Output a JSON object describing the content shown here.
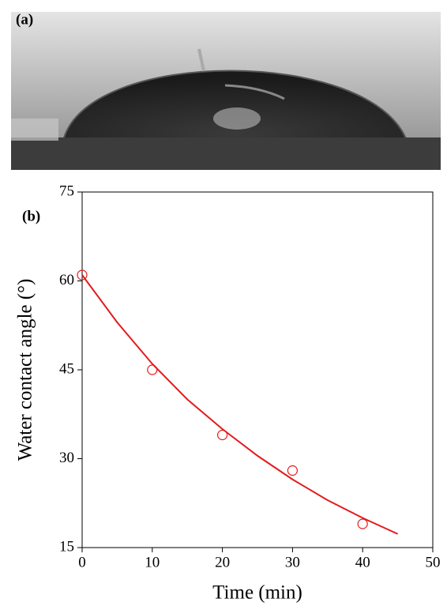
{
  "image_label": "(a)",
  "chart_data": {
    "type": "scatter",
    "panel_label": "(b)",
    "x_label": "Time (min)",
    "y_label": "Water contact angle (°)",
    "xlim": [
      0,
      50
    ],
    "xticks": [
      0,
      10,
      20,
      30,
      40,
      50
    ],
    "ylim": [
      15,
      75
    ],
    "yticks": [
      15,
      30,
      45,
      60,
      75
    ],
    "series": [
      {
        "style": "markers",
        "color": "#e41a1c",
        "x": [
          0,
          10,
          20,
          30,
          40
        ],
        "values": [
          61,
          45,
          34,
          28,
          19
        ]
      },
      {
        "style": "line",
        "color": "#e41a1c",
        "x": [
          0,
          5,
          10,
          15,
          20,
          25,
          30,
          35,
          40,
          45
        ],
        "values": [
          61,
          53,
          46,
          40,
          35,
          30.5,
          26.5,
          23,
          20,
          17.3
        ]
      }
    ]
  }
}
